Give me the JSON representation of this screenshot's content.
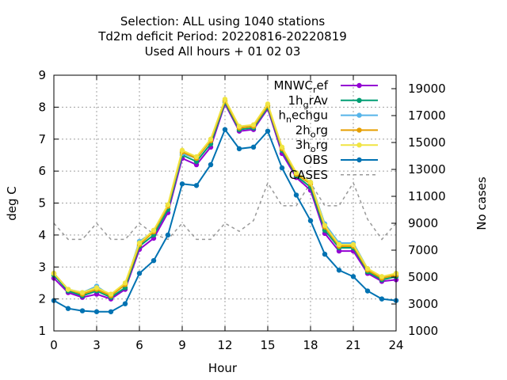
{
  "chart_data": {
    "type": "line",
    "title_lines": [
      "Selection: ALL using  1040 stations",
      "Td2m deficit   Period: 20220816-20220819",
      "Used  All hours + 01 02 03"
    ],
    "xlabel": "Hour",
    "ylabel": "deg C",
    "y2label": "No cases",
    "xlim": [
      0,
      24
    ],
    "ylim": [
      1,
      9
    ],
    "y2lim": [
      1000,
      20000
    ],
    "xticks": [
      0,
      3,
      6,
      9,
      12,
      15,
      18,
      21,
      24
    ],
    "yticks": [
      1,
      2,
      3,
      4,
      5,
      6,
      7,
      8,
      9
    ],
    "y2ticks": [
      1000,
      3000,
      5000,
      7000,
      9000,
      11000,
      13000,
      15000,
      17000,
      19000
    ],
    "grid": true,
    "legend_position": "top-right",
    "x": [
      0,
      1,
      2,
      3,
      4,
      5,
      6,
      7,
      8,
      9,
      10,
      11,
      12,
      13,
      14,
      15,
      16,
      17,
      18,
      19,
      20,
      21,
      22,
      23,
      24
    ],
    "series": [
      {
        "name": "MNWC_ref",
        "legend_main": "MNWC",
        "legend_sub": "r",
        "legend_rest": "ef",
        "color": "#9400d3",
        "marker": "circle",
        "axis": "left",
        "values": [
          2.65,
          2.2,
          2.05,
          2.15,
          2.0,
          2.3,
          3.55,
          3.9,
          4.7,
          6.4,
          6.2,
          6.75,
          8.1,
          7.25,
          7.3,
          7.95,
          6.55,
          5.8,
          5.4,
          4.05,
          3.5,
          3.5,
          2.8,
          2.55,
          2.6
        ]
      },
      {
        "name": "1h_grAv",
        "legend_main": "1h",
        "legend_sub": "g",
        "legend_rest": "rAv",
        "color": "#009e73",
        "marker": "circle",
        "axis": "left",
        "values": [
          2.75,
          2.25,
          2.1,
          2.25,
          2.05,
          2.35,
          3.65,
          4.0,
          4.8,
          6.5,
          6.3,
          6.85,
          8.15,
          7.3,
          7.35,
          8.0,
          6.65,
          5.85,
          5.5,
          4.15,
          3.6,
          3.6,
          2.85,
          2.6,
          2.7
        ]
      },
      {
        "name": "h_nechgu",
        "legend_main": "h",
        "legend_sub": "n",
        "legend_rest": "echgu",
        "color": "#56b4e9",
        "marker": "circle",
        "axis": "left",
        "values": [
          2.8,
          2.3,
          2.2,
          2.4,
          2.1,
          2.45,
          3.8,
          4.1,
          4.9,
          6.55,
          6.4,
          6.95,
          8.2,
          7.4,
          7.4,
          8.05,
          6.7,
          5.95,
          5.65,
          4.35,
          3.75,
          3.75,
          2.95,
          2.65,
          2.8
        ]
      },
      {
        "name": "2h_org",
        "legend_main": "2h",
        "legend_sub": "o",
        "legend_rest": "rg",
        "color": "#e69f00",
        "marker": "circle",
        "axis": "left",
        "values": [
          2.8,
          2.3,
          2.15,
          2.3,
          2.1,
          2.45,
          3.7,
          4.1,
          4.9,
          6.6,
          6.4,
          6.95,
          8.2,
          7.35,
          7.4,
          8.05,
          6.7,
          5.9,
          5.6,
          4.25,
          3.65,
          3.65,
          2.9,
          2.65,
          2.75
        ]
      },
      {
        "name": "3h_org",
        "legend_main": "3h",
        "legend_sub": "o",
        "legend_rest": "rg",
        "color": "#f0e442",
        "marker": "circle",
        "axis": "left",
        "values": [
          2.8,
          2.3,
          2.2,
          2.35,
          2.15,
          2.5,
          3.75,
          4.15,
          4.95,
          6.65,
          6.45,
          7.0,
          8.25,
          7.4,
          7.45,
          8.1,
          6.75,
          5.95,
          5.65,
          4.3,
          3.7,
          3.7,
          2.95,
          2.7,
          2.8
        ]
      },
      {
        "name": "OBS",
        "legend_main": "OBS",
        "legend_sub": "",
        "legend_rest": "",
        "color": "#0072b2",
        "marker": "circle",
        "axis": "left",
        "values": [
          1.95,
          1.7,
          1.63,
          1.6,
          1.6,
          1.85,
          2.8,
          3.2,
          4.0,
          5.6,
          5.55,
          6.2,
          7.3,
          6.7,
          6.75,
          7.25,
          6.1,
          5.25,
          4.45,
          3.4,
          2.9,
          2.7,
          2.25,
          2.0,
          1.95
        ]
      },
      {
        "name": "CASES",
        "legend_main": "CASES",
        "legend_sub": "",
        "legend_rest": "",
        "color": "#999999",
        "marker": "none",
        "dashed": true,
        "axis": "right",
        "values": [
          9000,
          7800,
          7800,
          9000,
          7800,
          7800,
          9000,
          8200,
          7800,
          9000,
          7800,
          7800,
          9000,
          8400,
          9200,
          12000,
          10300,
          10300,
          12000,
          10300,
          10300,
          12000,
          9300,
          7800,
          9000
        ]
      }
    ]
  }
}
